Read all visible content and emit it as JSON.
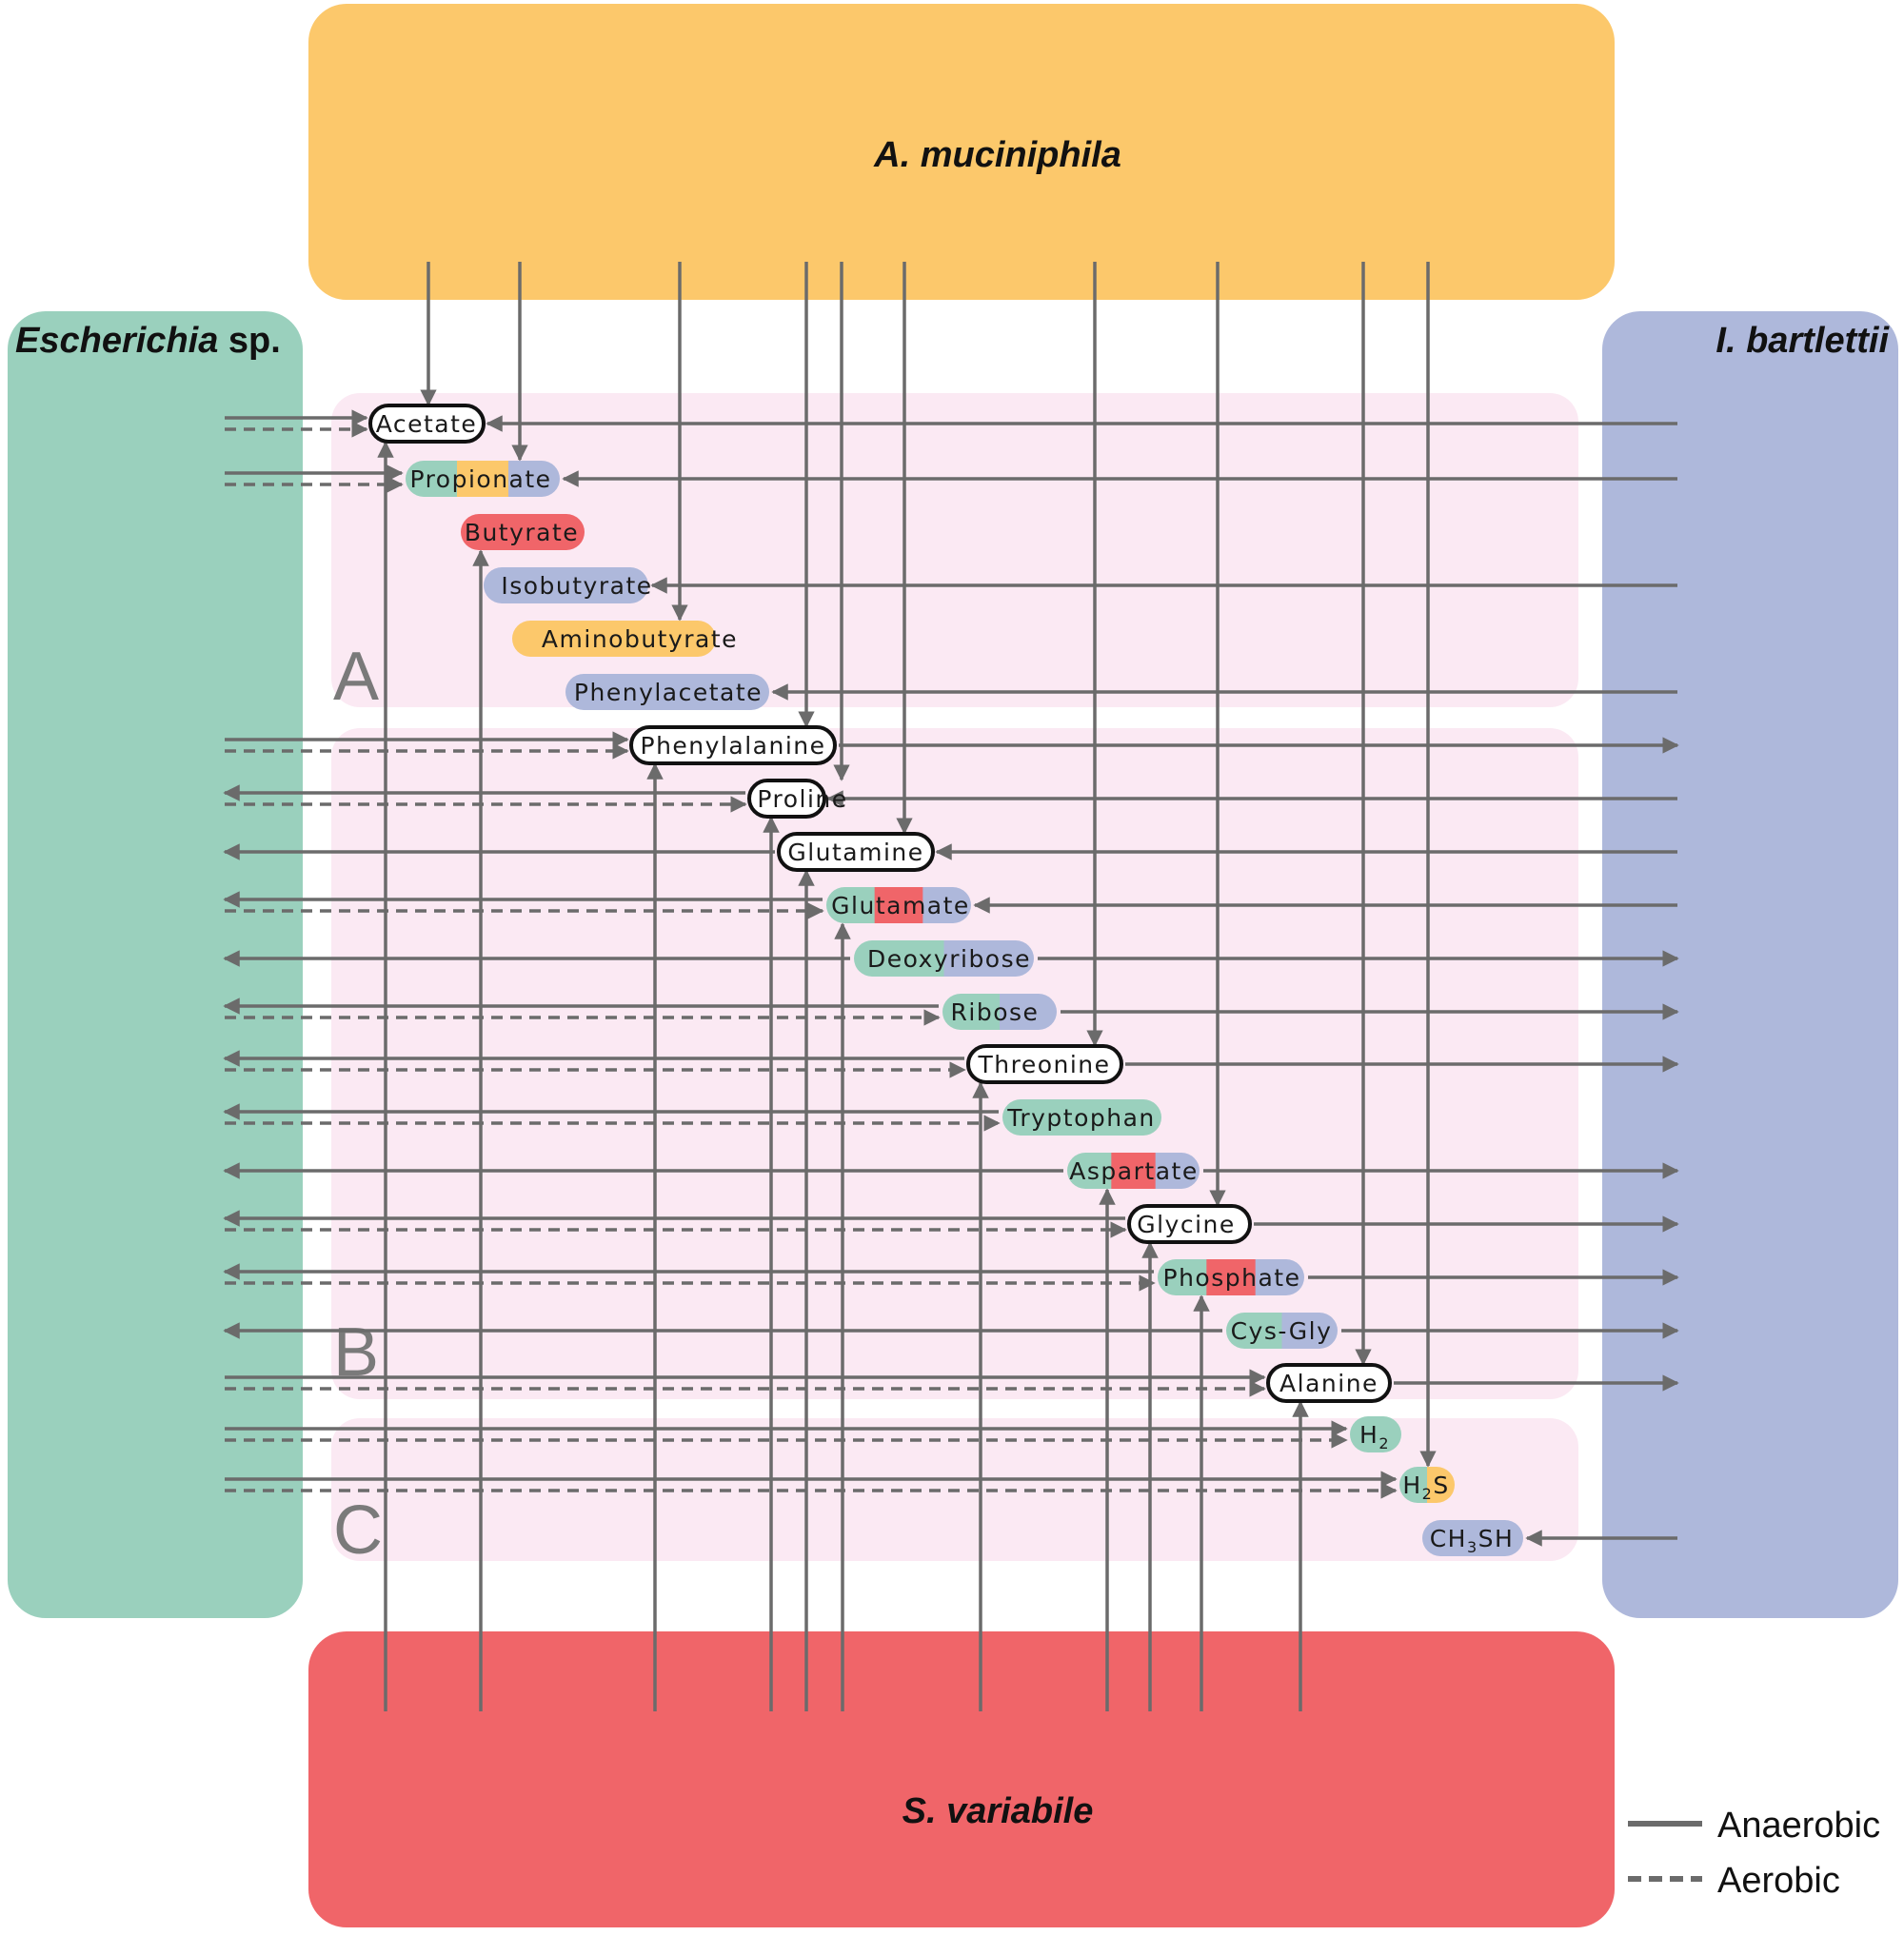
{
  "colors": {
    "a_muciniphila": "#fcc86b",
    "escherichia": "#9ad0bd",
    "bartlettii": "#aeb8db",
    "s_variabile": "#f06569",
    "region_bg": "#fbe9f3",
    "arrow": "#6b6b6b"
  },
  "organisms": {
    "top": {
      "label": "A. muciniphila"
    },
    "left": {
      "label_italic": "Escherichia",
      "label_suffix": " sp."
    },
    "right": {
      "label": "I. bartlettii"
    },
    "bottom": {
      "label": "S. variabile"
    }
  },
  "regions": [
    {
      "id": "A",
      "label": "A"
    },
    {
      "id": "B",
      "label": "B"
    },
    {
      "id": "C",
      "label": "C"
    }
  ],
  "metabolites": [
    {
      "name": "Acetate",
      "parts": [
        {
          "text": "Acetate"
        }
      ],
      "colors": [],
      "bold_outline": true
    },
    {
      "name": "Propionate",
      "parts": [
        {
          "text": "Propionate"
        }
      ],
      "colors": [
        "#9ad0bd",
        "#fcc86b",
        "#aeb8db"
      ],
      "bold_outline": false
    },
    {
      "name": "Butyrate",
      "parts": [
        {
          "text": "Butyrate"
        }
      ],
      "colors": [
        "#f06569"
      ],
      "bold_outline": false
    },
    {
      "name": "Isobutyrate",
      "parts": [
        {
          "text": "Isobutyrate"
        }
      ],
      "colors": [
        "#aeb8db"
      ],
      "bold_outline": false
    },
    {
      "name": "Aminobutyrate",
      "parts": [
        {
          "text": "Aminobutyrate"
        }
      ],
      "colors": [
        "#fcc86b"
      ],
      "bold_outline": false
    },
    {
      "name": "Phenylacetate",
      "parts": [
        {
          "text": "Phenylacetate"
        }
      ],
      "colors": [
        "#aeb8db"
      ],
      "bold_outline": false
    },
    {
      "name": "Phenylalanine",
      "parts": [
        {
          "text": "Phenylalanine"
        }
      ],
      "colors": [],
      "bold_outline": true
    },
    {
      "name": "Proline",
      "parts": [
        {
          "text": "Proline"
        }
      ],
      "colors": [],
      "bold_outline": true
    },
    {
      "name": "Glutamine",
      "parts": [
        {
          "text": "Glutamine"
        }
      ],
      "colors": [],
      "bold_outline": true
    },
    {
      "name": "Glutamate",
      "parts": [
        {
          "text": "Glutamate"
        }
      ],
      "colors": [
        "#9ad0bd",
        "#f06569",
        "#aeb8db"
      ],
      "bold_outline": false
    },
    {
      "name": "Deoxyribose",
      "parts": [
        {
          "text": "Deoxyribose"
        }
      ],
      "colors": [
        "#9ad0bd",
        "#aeb8db"
      ],
      "bold_outline": false
    },
    {
      "name": "Ribose",
      "parts": [
        {
          "text": "Ribose"
        }
      ],
      "colors": [
        "#9ad0bd",
        "#aeb8db"
      ],
      "bold_outline": false
    },
    {
      "name": "Threonine",
      "parts": [
        {
          "text": "Threonine"
        }
      ],
      "colors": [],
      "bold_outline": true
    },
    {
      "name": "Tryptophan",
      "parts": [
        {
          "text": "Tryptophan"
        }
      ],
      "colors": [
        "#9ad0bd"
      ],
      "bold_outline": false
    },
    {
      "name": "Aspartate",
      "parts": [
        {
          "text": "Aspartate"
        }
      ],
      "colors": [
        "#9ad0bd",
        "#f06569",
        "#aeb8db"
      ],
      "bold_outline": false
    },
    {
      "name": "Glycine",
      "parts": [
        {
          "text": "Glycine"
        }
      ],
      "colors": [],
      "bold_outline": true
    },
    {
      "name": "Phosphate",
      "parts": [
        {
          "text": "Phosphate"
        }
      ],
      "colors": [
        "#9ad0bd",
        "#f06569",
        "#aeb8db"
      ],
      "bold_outline": false
    },
    {
      "name": "Cys-Gly",
      "parts": [
        {
          "text": "Cys-Gly"
        }
      ],
      "colors": [
        "#9ad0bd",
        "#aeb8db"
      ],
      "bold_outline": false
    },
    {
      "name": "Alanine",
      "parts": [
        {
          "text": "Alanine"
        }
      ],
      "colors": [],
      "bold_outline": true
    },
    {
      "name": "H2",
      "parts": [
        {
          "text": "H"
        },
        {
          "text": "2",
          "sub": true
        }
      ],
      "colors": [
        "#9ad0bd"
      ],
      "bold_outline": false
    },
    {
      "name": "H2S",
      "parts": [
        {
          "text": "H"
        },
        {
          "text": "2",
          "sub": true
        },
        {
          "text": "S"
        }
      ],
      "colors": [
        "#9ad0bd",
        "#fcc86b"
      ],
      "bold_outline": false
    },
    {
      "name": "CH3SH",
      "parts": [
        {
          "text": "CH"
        },
        {
          "text": "3",
          "sub": true
        },
        {
          "text": "SH"
        }
      ],
      "colors": [
        "#aeb8db"
      ],
      "bold_outline": false
    }
  ],
  "legend": {
    "anaerobic": "Anaerobic",
    "aerobic": "Aerobic"
  }
}
